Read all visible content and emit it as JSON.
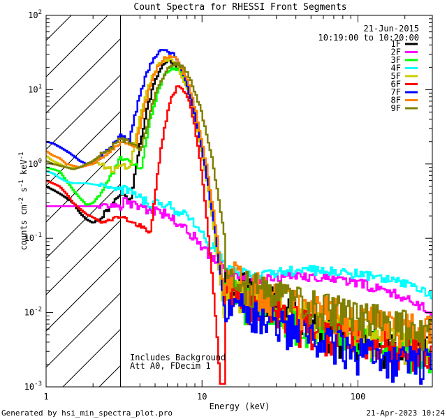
{
  "footer": {
    "left": "Generated by hsi_min_spectra_plot.pro",
    "right": "21-Apr-2023 10:24"
  },
  "chart_data": {
    "type": "line",
    "title": "Count Spectra for RHESSI Front Segments",
    "xlabel": "Energy (keV)",
    "ylabel_parts": {
      "pre": "counts cm",
      "sup1": "-2",
      "mid": " s",
      "sup2": "-1",
      "mid2": " keV",
      "sup3": "-1"
    },
    "xscale": "log",
    "yscale": "log",
    "xlim": [
      1,
      300
    ],
    "ylim": [
      0.001,
      100
    ],
    "x_ticks": [
      {
        "value": 1,
        "label": "1"
      },
      {
        "value": 10,
        "label": "10"
      },
      {
        "value": 100,
        "label": "100"
      }
    ],
    "y_ticks": [
      {
        "value": 0.001,
        "base": "10",
        "exp": "-3"
      },
      {
        "value": 0.01,
        "base": "10",
        "exp": "-2"
      },
      {
        "value": 0.1,
        "base": "10",
        "exp": "-1"
      },
      {
        "value": 1,
        "base": "10",
        "exp": "0"
      },
      {
        "value": 10,
        "base": "10",
        "exp": "1"
      },
      {
        "value": 100,
        "base": "10",
        "exp": "2"
      }
    ],
    "hatched_region_keV": [
      1,
      3
    ],
    "info_date": "21-Jun-2015",
    "info_time": "10:19:00 to 10:20:00",
    "annotation_lines": [
      "Includes Background",
      "Att A0, FDecim 1"
    ],
    "legend_position": "top-right",
    "series": [
      {
        "name": "1F",
        "color": "#000000",
        "low": [
          0.5,
          0.45,
          0.4,
          0.35,
          0.3,
          0.22,
          0.18,
          0.16,
          0.19,
          0.23,
          0.3,
          0.4
        ],
        "peak": 24,
        "peak_keV": 6.3,
        "width": 0.2,
        "onset": 3.3,
        "tail": [
          0.03,
          0.01,
          0.004,
          0.003
        ]
      },
      {
        "name": "2F",
        "color": "#ff00ff",
        "low": [
          0.27,
          0.27,
          0.27,
          0.27,
          0.27,
          0.27,
          0.27,
          0.27,
          0.27,
          0.27,
          0.28,
          0.29
        ],
        "mid": [
          0.3,
          0.29,
          0.28,
          0.26,
          0.24,
          0.22,
          0.2,
          0.17,
          0.14,
          0.11,
          0.085,
          0.065,
          0.05,
          0.04
        ],
        "tail": [
          0.035,
          0.03,
          0.028,
          0.03,
          0.032,
          0.03,
          0.028,
          0.025,
          0.022,
          0.018,
          0.014,
          0.01
        ]
      },
      {
        "name": "3F",
        "color": "#00ff00",
        "low": [
          0.9,
          0.85,
          0.8,
          0.6,
          0.45,
          0.35,
          0.28,
          0.3,
          0.4,
          0.55,
          0.8,
          1.2
        ],
        "peak": 20,
        "peak_keV": 6.6,
        "width": 0.19,
        "onset": 3.4,
        "tail": [
          0.02,
          0.008,
          0.004,
          0.003
        ]
      },
      {
        "name": "4F",
        "color": "#00ffff",
        "low": [
          0.8,
          0.75,
          0.65,
          0.58,
          0.55,
          0.55,
          0.55,
          0.53,
          0.52,
          0.5,
          0.48,
          0.45
        ],
        "mid": [
          0.45,
          0.42,
          0.38,
          0.33,
          0.3,
          0.28,
          0.26,
          0.24,
          0.2,
          0.16,
          0.12,
          0.09,
          0.07,
          0.05
        ],
        "tail": [
          0.04,
          0.035,
          0.033,
          0.035,
          0.038,
          0.037,
          0.035,
          0.033,
          0.03,
          0.027,
          0.022,
          0.017
        ]
      },
      {
        "name": "5F",
        "color": "#cccc00",
        "low": [
          1.3,
          1.1,
          1.0,
          0.9,
          0.9,
          0.9,
          1.0,
          1.1,
          1.0,
          0.9,
          0.8,
          1.0
        ],
        "peak": 26,
        "peak_keV": 6.0,
        "width": 0.21,
        "onset": 3.2,
        "tail": [
          0.025,
          0.01,
          0.005,
          0.003
        ]
      },
      {
        "name": "6F",
        "color": "#ff0000",
        "low": [
          0.6,
          0.55,
          0.5,
          0.4,
          0.3,
          0.25,
          0.21,
          0.19,
          0.17,
          0.17,
          0.18,
          0.2
        ],
        "peak": 11,
        "peak_keV": 7.2,
        "width": 0.14,
        "onset": 4.8,
        "tail": [
          0.02,
          0.008,
          0.004,
          0.003
        ]
      },
      {
        "name": "7F",
        "color": "#0000ff",
        "low": [
          2.0,
          1.9,
          1.7,
          1.5,
          1.3,
          1.1,
          1.0,
          1.0,
          1.2,
          1.5,
          1.9,
          2.4
        ],
        "peak": 34,
        "peak_keV": 5.8,
        "width": 0.22,
        "onset": 3.0,
        "tail": [
          0.015,
          0.006,
          0.003,
          0.002
        ]
      },
      {
        "name": "8F",
        "color": "#ff8000",
        "low": [
          1.5,
          1.3,
          1.2,
          1.0,
          0.95,
          0.9,
          0.95,
          1.0,
          1.2,
          1.4,
          1.6,
          2.0
        ],
        "peak": 28,
        "peak_keV": 6.2,
        "width": 0.21,
        "onset": 3.1,
        "tail": [
          0.035,
          0.014,
          0.008,
          0.006
        ]
      },
      {
        "name": "9F",
        "color": "#808000",
        "low": [
          1.1,
          1.0,
          0.95,
          0.9,
          0.85,
          0.9,
          1.0,
          1.1,
          1.3,
          1.5,
          1.8,
          2.2
        ],
        "peak": 22,
        "peak_keV": 6.8,
        "width": 0.22,
        "onset": 3.2,
        "tail": [
          0.03,
          0.015,
          0.009,
          0.006
        ]
      }
    ]
  }
}
